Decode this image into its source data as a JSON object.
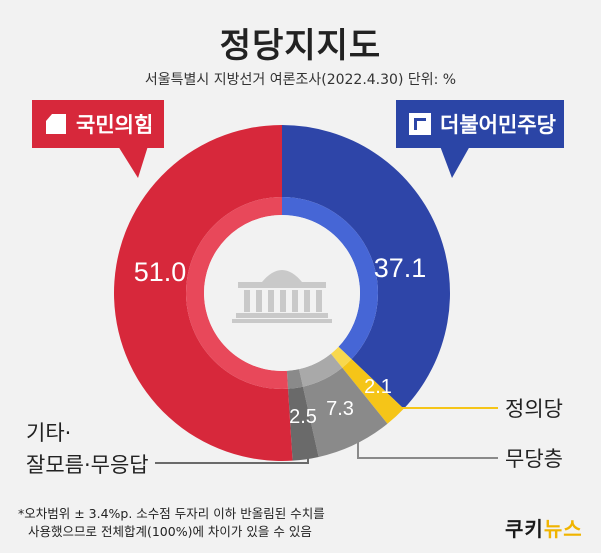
{
  "title": "정당지지도",
  "subtitle": "서울특별시 지방선거 여론조사(2022.4.30)  단위: %",
  "parties": {
    "left_badge": "국민의힘",
    "right_badge": "더불어민주당"
  },
  "colors": {
    "ppp": "#d7283b",
    "dpk": "#2e45a8",
    "justice": "#f5c518",
    "none": "#8a8a8a",
    "other": "#6a6a6a",
    "background": "#f2f2f2"
  },
  "chart_data": {
    "type": "pie",
    "title": "정당지지도",
    "subtitle": "서울특별시 지방선거 여론조사(2022.4.30)  단위: %",
    "slices": [
      {
        "name": "더불어민주당",
        "value": 37.1,
        "label": "37.1"
      },
      {
        "name": "정의당",
        "value": 2.1,
        "label": "2.1"
      },
      {
        "name": "무당층",
        "value": 7.3,
        "label": "7.3"
      },
      {
        "name": "기타·잘모름·무응답",
        "value": 2.5,
        "label": "2.5"
      },
      {
        "name": "국민의힘",
        "value": 51.0,
        "label": "51.0"
      }
    ],
    "external_labels": {
      "justice": "정의당",
      "none": "무당층",
      "other_line1": "기타·",
      "other_line2": "잘모름·무응답"
    }
  },
  "footnote": {
    "line1": "*오차범위 ± 3.4%p. 소수점 두자리 이하 반올림된 수치를",
    "line2": "사용했으므로 전체합계(100%)에 차이가 있을 수 있음"
  },
  "brand": {
    "part1": "쿠키",
    "part2": "뉴스"
  }
}
